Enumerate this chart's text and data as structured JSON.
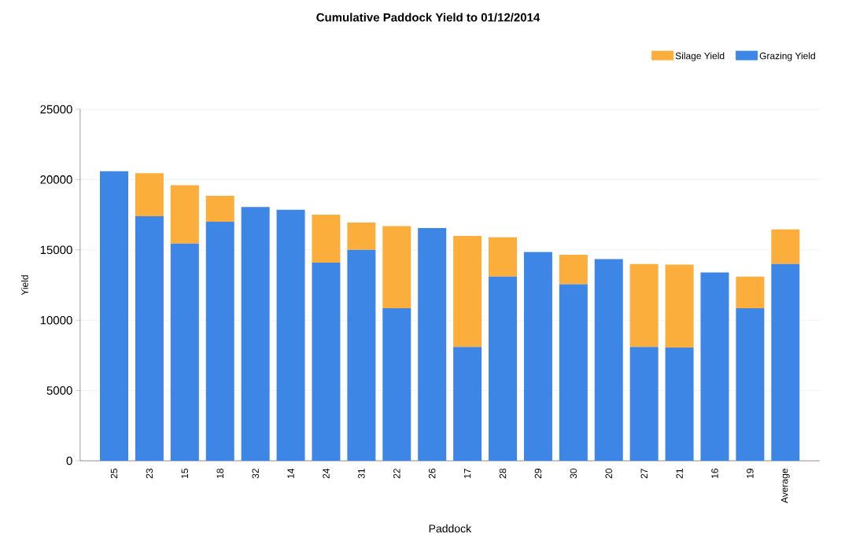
{
  "chart_data": {
    "type": "bar",
    "stacked": true,
    "title": "Cumulative Paddock Yield to 01/12/2014",
    "xlabel": "Paddock",
    "ylabel": "Yield",
    "categories": [
      "25",
      "23",
      "15",
      "18",
      "32",
      "14",
      "24",
      "31",
      "22",
      "26",
      "17",
      "28",
      "29",
      "30",
      "20",
      "27",
      "21",
      "16",
      "19",
      "Average"
    ],
    "series": [
      {
        "name": "Grazing Yield",
        "color": "#3d86e6",
        "values": [
          20600,
          17400,
          15450,
          17000,
          18050,
          17850,
          14100,
          15000,
          10850,
          16550,
          8100,
          13100,
          14850,
          12550,
          14350,
          8100,
          8050,
          13400,
          10850,
          14000
        ]
      },
      {
        "name": "Silage Yield",
        "color": "#fbae3c",
        "values": [
          null,
          3050,
          4150,
          1850,
          null,
          null,
          3400,
          1950,
          5850,
          null,
          7900,
          2800,
          null,
          2100,
          null,
          5900,
          5900,
          null,
          2250,
          2450
        ]
      }
    ],
    "ylim": [
      0,
      25000
    ],
    "yticks": [
      0,
      5000,
      10000,
      15000,
      20000,
      25000
    ],
    "grid": "y",
    "legend": "top right"
  }
}
